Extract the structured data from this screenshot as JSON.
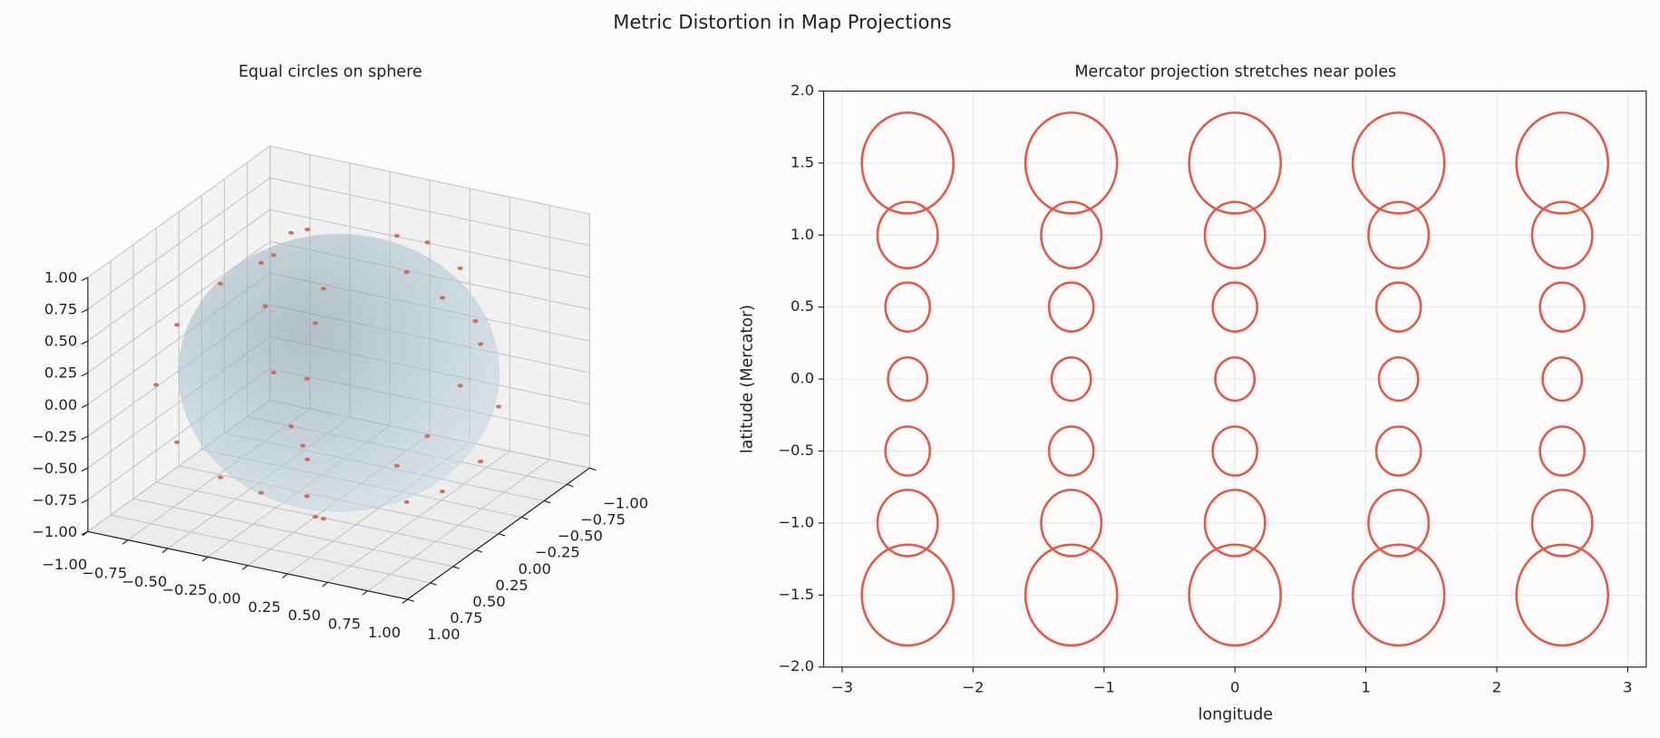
{
  "title": "Metric Distortion in Map Projections",
  "chart_data": [
    {
      "type": "scatter3d",
      "title": "Equal circles on sphere",
      "surface": "sphere",
      "surface_color": "#a9c1cf",
      "color": "#cd5c4e",
      "x": [
        -0.341,
        0.134,
        0.425,
        0.134,
        -0.341,
        -0.519,
        0.204,
        0.648,
        0.204,
        -0.519,
        -0.71,
        0.28,
        0.887,
        0.28,
        -0.71,
        -0.801,
        0.315,
        1,
        0.315,
        -0.801,
        -0.71,
        0.28,
        0.887,
        0.28,
        -0.71,
        -0.519,
        0.204,
        0.648,
        0.204,
        -0.519,
        -0.341,
        0.134,
        0.425,
        0.134,
        -0.341
      ],
      "y": [
        -0.254,
        -0.403,
        0,
        0.403,
        0.254,
        -0.388,
        -0.615,
        0,
        0.615,
        0.388,
        -0.531,
        -0.842,
        0,
        0.842,
        0.531,
        -0.599,
        -0.949,
        0,
        0.949,
        0.599,
        -0.531,
        -0.842,
        0,
        0.842,
        0.531,
        -0.388,
        -0.615,
        0,
        0.615,
        0.388,
        -0.254,
        -0.403,
        0,
        0.403,
        0.254
      ],
      "z": [
        -0.905,
        -0.905,
        -0.905,
        -0.905,
        -0.905,
        -0.762,
        -0.762,
        -0.762,
        -0.762,
        -0.762,
        -0.462,
        -0.462,
        -0.462,
        -0.462,
        -0.462,
        0,
        0,
        0,
        0,
        0,
        0.462,
        0.462,
        0.462,
        0.462,
        0.462,
        0.762,
        0.762,
        0.762,
        0.762,
        0.762,
        0.905,
        0.905,
        0.905,
        0.905,
        0.905
      ],
      "xlim": [
        -1,
        1
      ],
      "ylim": [
        -1,
        1
      ],
      "zlim": [
        -1,
        1
      ],
      "xticks": [
        {
          "value": -1,
          "label": "−1.00"
        },
        {
          "value": -0.75,
          "label": "−0.75"
        },
        {
          "value": -0.5,
          "label": "−0.50"
        },
        {
          "value": -0.25,
          "label": "−0.25"
        },
        {
          "value": 0,
          "label": "0.00"
        },
        {
          "value": 0.25,
          "label": "0.25"
        },
        {
          "value": 0.5,
          "label": "0.50"
        },
        {
          "value": 0.75,
          "label": "0.75"
        },
        {
          "value": 1,
          "label": "1.00"
        }
      ],
      "yticks": [
        {
          "value": -1,
          "label": "−1.00"
        },
        {
          "value": -0.75,
          "label": "−0.75"
        },
        {
          "value": -0.5,
          "label": "−0.50"
        },
        {
          "value": -0.25,
          "label": "−0.25"
        },
        {
          "value": 0,
          "label": "0.00"
        },
        {
          "value": 0.25,
          "label": "0.25"
        },
        {
          "value": 0.5,
          "label": "0.50"
        },
        {
          "value": 0.75,
          "label": "0.75"
        },
        {
          "value": 1,
          "label": "1.00"
        }
      ],
      "zticks": [
        {
          "value": -1,
          "label": "−1.00"
        },
        {
          "value": -0.75,
          "label": "−0.75"
        },
        {
          "value": -0.5,
          "label": "−0.50"
        },
        {
          "value": -0.25,
          "label": "−0.25"
        },
        {
          "value": 0,
          "label": "0.00"
        },
        {
          "value": 0.25,
          "label": "0.25"
        },
        {
          "value": 0.5,
          "label": "0.50"
        },
        {
          "value": 0.75,
          "label": "0.75"
        },
        {
          "value": 1,
          "label": "1.00"
        }
      ],
      "grid": true
    },
    {
      "type": "ellipse",
      "title": "Mercator projection stretches near poles",
      "x_label": "longitude",
      "y_label": "latitude (Mercator)",
      "color": "#e05a4a",
      "x": [
        -2.5,
        -1.25,
        0,
        1.25,
        2.5,
        -2.5,
        -1.25,
        0,
        1.25,
        2.5,
        -2.5,
        -1.25,
        0,
        1.25,
        2.5,
        -2.5,
        -1.25,
        0,
        1.25,
        2.5,
        -2.5,
        -1.25,
        0,
        1.25,
        2.5,
        -2.5,
        -1.25,
        0,
        1.25,
        2.5,
        -2.5,
        -1.25,
        0,
        1.25,
        2.5
      ],
      "y": [
        -1.5,
        -1.5,
        -1.5,
        -1.5,
        -1.5,
        -1,
        -1,
        -1,
        -1,
        -1,
        -0.5,
        -0.5,
        -0.5,
        -0.5,
        -0.5,
        0,
        0,
        0,
        0,
        0,
        0.5,
        0.5,
        0.5,
        0.5,
        0.5,
        1,
        1,
        1,
        1,
        1,
        1.5,
        1.5,
        1.5,
        1.5,
        1.5
      ],
      "r": [
        0.35,
        0.35,
        0.35,
        0.35,
        0.35,
        0.23,
        0.23,
        0.23,
        0.23,
        0.23,
        0.17,
        0.17,
        0.17,
        0.17,
        0.17,
        0.15,
        0.15,
        0.15,
        0.15,
        0.15,
        0.17,
        0.17,
        0.17,
        0.17,
        0.17,
        0.23,
        0.23,
        0.23,
        0.23,
        0.23,
        0.35,
        0.35,
        0.35,
        0.35,
        0.35
      ],
      "xlim": [
        -3.1416,
        3.1416
      ],
      "ylim": [
        -2,
        2
      ],
      "xticks": [
        {
          "value": -3,
          "label": "−3"
        },
        {
          "value": -2,
          "label": "−2"
        },
        {
          "value": -1,
          "label": "−1"
        },
        0,
        1,
        2,
        3
      ],
      "yticks": [
        {
          "value": -2,
          "label": "−2.0"
        },
        {
          "value": -1.5,
          "label": "−1.5"
        },
        {
          "value": -1,
          "label": "−1.0"
        },
        {
          "value": -0.5,
          "label": "−0.5"
        },
        {
          "value": 0,
          "label": "0.0"
        },
        {
          "value": 0.5,
          "label": "0.5"
        },
        {
          "value": 1,
          "label": "1.0"
        },
        {
          "value": 1.5,
          "label": "1.5"
        },
        {
          "value": 2,
          "label": "2.0"
        }
      ],
      "grid": true
    }
  ]
}
